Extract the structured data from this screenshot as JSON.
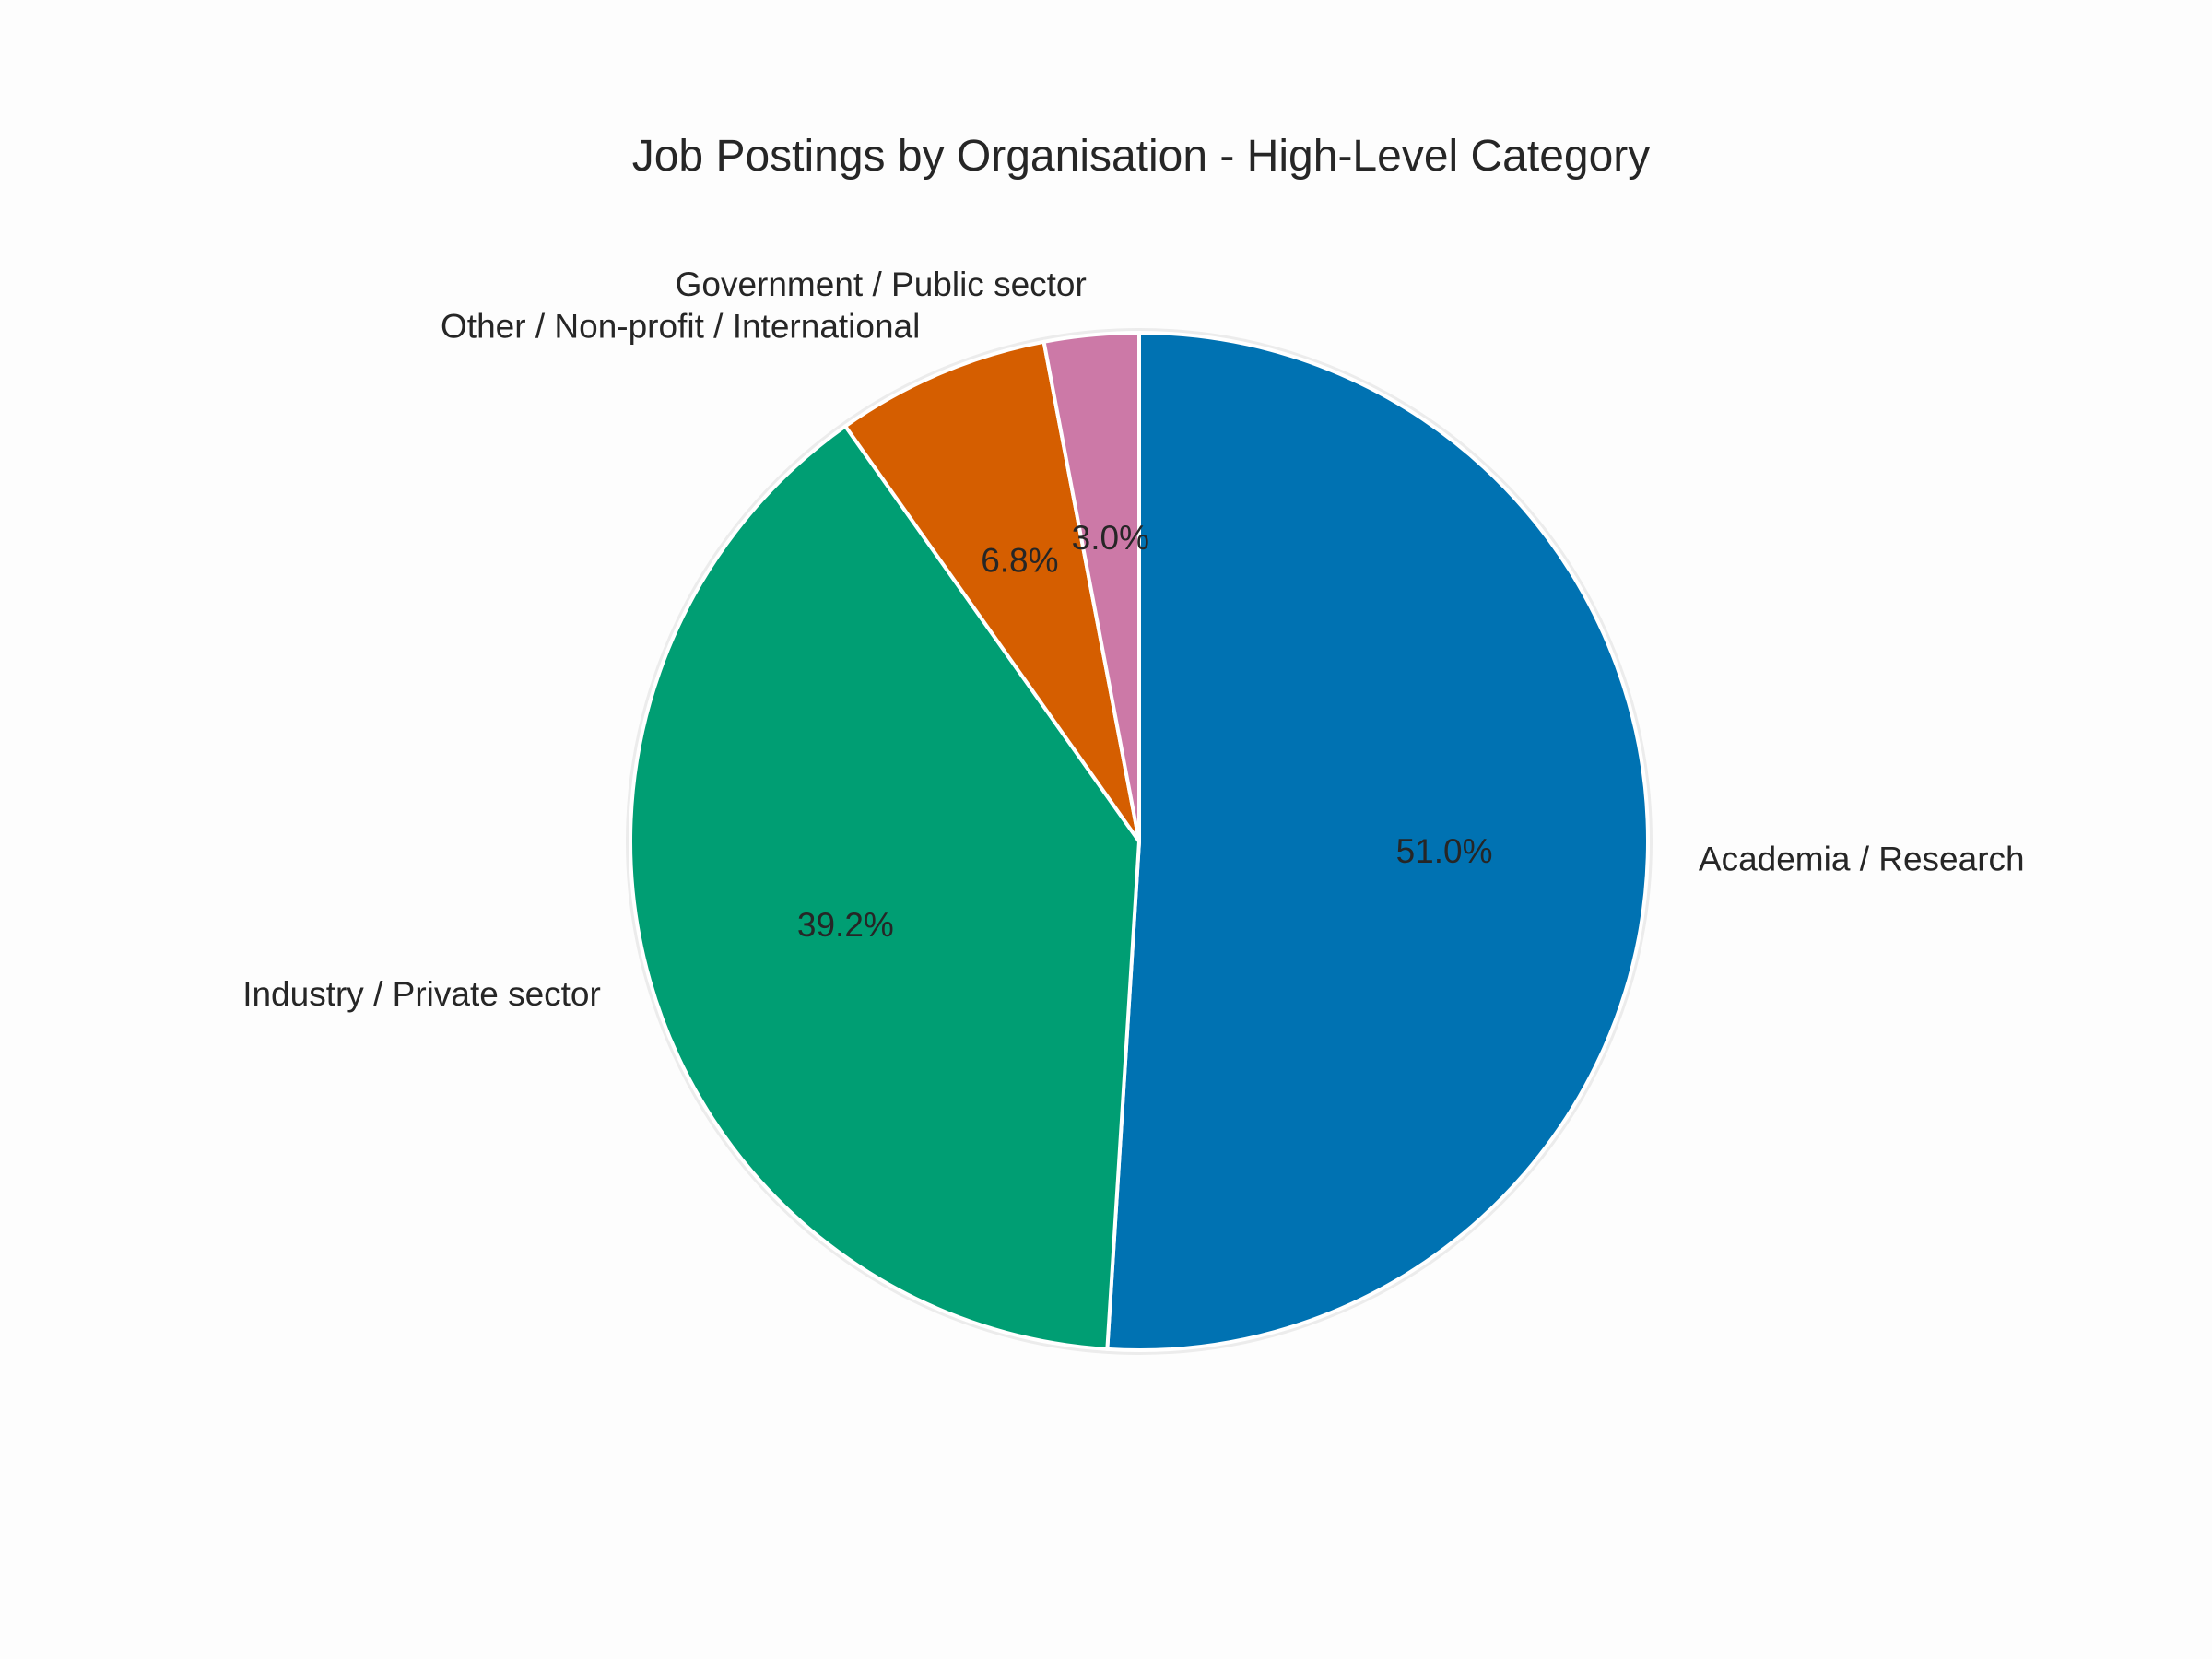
{
  "chart_data": {
    "type": "pie",
    "title": "Job Postings by Organisation - High-Level Category",
    "start_angle": 90,
    "counterclock": false,
    "slices": [
      {
        "label": "Academia / Research",
        "value": 51.0,
        "pct_label": "51.0%",
        "color": "#0072b2"
      },
      {
        "label": "Industry / Private sector",
        "value": 39.2,
        "pct_label": "39.2%",
        "color": "#009e73"
      },
      {
        "label": "Other / Non-profit / International",
        "value": 6.8,
        "pct_label": "6.8%",
        "color": "#d55e00"
      },
      {
        "label": "Government / Public sector",
        "value": 3.0,
        "pct_label": "3.0%",
        "color": "#cc79a7"
      }
    ],
    "categories": [
      "Academia / Research",
      "Industry / Private sector",
      "Other / Non-profit / International",
      "Government / Public sector"
    ],
    "values": [
      51.0,
      39.2,
      6.8,
      3.0
    ],
    "legend": "none (labels placed outside slices)"
  },
  "style": {
    "background": "#fdfdfd",
    "edge_color": "#ffffff",
    "text_color": "#262626"
  }
}
